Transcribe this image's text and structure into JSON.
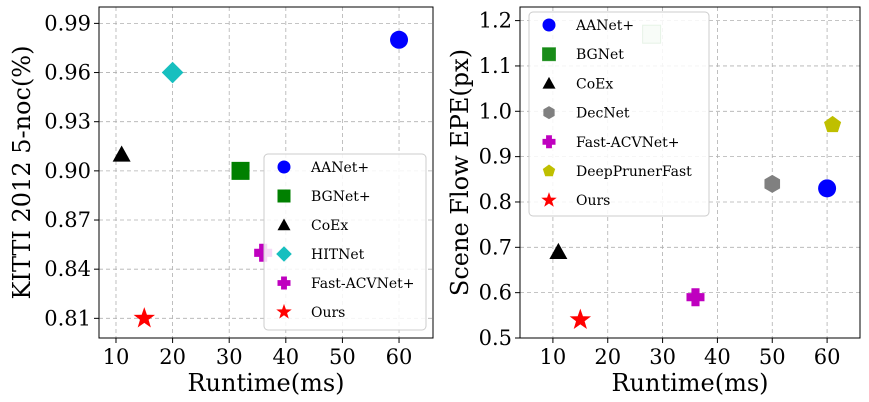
{
  "chart_data": [
    {
      "type": "scatter",
      "title": "",
      "xlabel": "Runtime(ms)",
      "ylabel": "KITTI 2012 5-noc(%)",
      "xlim": [
        7,
        66
      ],
      "ylim": [
        0.798,
        1.0
      ],
      "xticks": [
        10,
        20,
        30,
        40,
        50,
        60
      ],
      "yticks": [
        0.81,
        0.84,
        0.87,
        0.9,
        0.93,
        0.96,
        0.99
      ],
      "ytick_labels": [
        "0.81",
        "0.84",
        "0.87",
        "0.90",
        "0.93",
        "0.96",
        "0.99"
      ],
      "grid": true,
      "legend_position": "lower-right",
      "series": [
        {
          "name": "AANet+",
          "x": 60,
          "y": 0.98,
          "color": "#0000ff",
          "marker": "circle",
          "alpha": 1
        },
        {
          "name": "BGNet+",
          "x": 32,
          "y": 0.9,
          "color": "#008000",
          "marker": "square",
          "alpha": 1
        },
        {
          "name": "CoEx",
          "x": 11,
          "y": 0.91,
          "color": "#000000",
          "marker": "triangle",
          "alpha": 1
        },
        {
          "name": "HITNet",
          "x": 20,
          "y": 0.96,
          "color": "#17bfbf",
          "marker": "diamond",
          "alpha": 1
        },
        {
          "name": "Fast-ACVNet+",
          "x": 36,
          "y": 0.85,
          "color": "#bf00bf",
          "marker": "plus",
          "alpha": 1
        },
        {
          "name": "Ours",
          "x": 15,
          "y": 0.81,
          "color": "#ff0000",
          "marker": "star",
          "alpha": 1
        }
      ]
    },
    {
      "type": "scatter",
      "title": "",
      "xlabel": "Runtime(ms)",
      "ylabel": "Scene Flow EPE(px)",
      "xlim": [
        4,
        66
      ],
      "ylim": [
        0.5,
        1.23
      ],
      "xticks": [
        10,
        20,
        30,
        40,
        50,
        60
      ],
      "yticks": [
        0.5,
        0.6,
        0.7,
        0.8,
        0.9,
        1.0,
        1.1,
        1.2
      ],
      "ytick_labels": [
        "0.5",
        "0.6",
        "0.7",
        "0.8",
        "0.9",
        "1.0",
        "1.1",
        "1.2"
      ],
      "grid": true,
      "legend_position": "upper-left",
      "series": [
        {
          "name": "AANet+",
          "x": 60,
          "y": 0.83,
          "color": "#0000ff",
          "marker": "circle",
          "alpha": 1
        },
        {
          "name": "BGNet",
          "x": 28,
          "y": 1.17,
          "color": "#008000",
          "marker": "square",
          "alpha": 0.2
        },
        {
          "name": "CoEx",
          "x": 11,
          "y": 0.69,
          "color": "#000000",
          "marker": "triangle",
          "alpha": 1
        },
        {
          "name": "DecNet",
          "x": 50,
          "y": 0.84,
          "color": "#808080",
          "marker": "hexagon",
          "alpha": 1
        },
        {
          "name": "Fast-ACVNet+",
          "x": 36,
          "y": 0.59,
          "color": "#bf00bf",
          "marker": "plus",
          "alpha": 1
        },
        {
          "name": "DeepPrunerFast",
          "x": 61,
          "y": 0.97,
          "color": "#bfbf00",
          "marker": "pentagon",
          "alpha": 1
        },
        {
          "name": "Ours",
          "x": 15,
          "y": 0.54,
          "color": "#ff0000",
          "marker": "star",
          "alpha": 1
        }
      ]
    }
  ]
}
